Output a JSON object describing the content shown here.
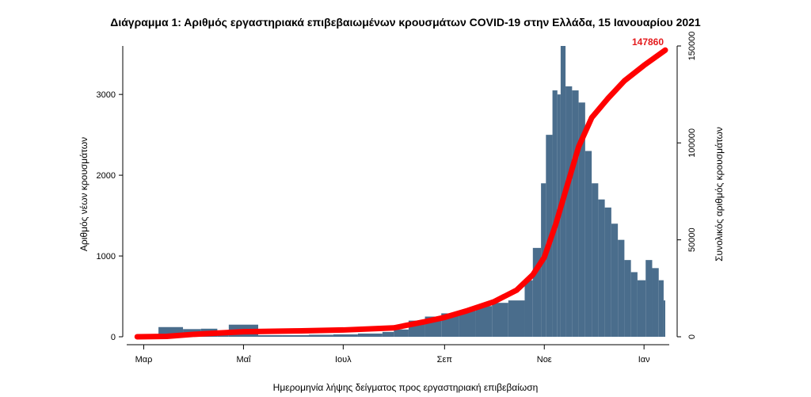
{
  "chart_data": {
    "type": "bar",
    "title": "Διάγραμμα 1: Αριθμός εργαστηριακά επιβεβαιωμένων κρουσμάτων COVID-19 στην Ελλάδα, 15 Ιανουαρίου 2021",
    "xlabel": "Ημερομηνία λήψης δείγματος προς εργαστηριακή επιβεβαίωση",
    "ylabel": "Αριθμός νέων κρουσμάτων",
    "y2label": "Συνολικός αριθμός κρουσμάτων",
    "xlim": [
      "2020-02-22",
      "2021-01-14"
    ],
    "ylim": [
      0,
      3600
    ],
    "y2lim": [
      0,
      150000
    ],
    "x_ticks": [
      {
        "date": "2020-03-01",
        "label": "Μαρ"
      },
      {
        "date": "2020-05-01",
        "label": "Μαΐ"
      },
      {
        "date": "2020-07-01",
        "label": "Ιουλ"
      },
      {
        "date": "2020-09-01",
        "label": "Σεπ"
      },
      {
        "date": "2020-11-01",
        "label": "Νοε"
      },
      {
        "date": "2021-01-01",
        "label": "Ιαν"
      }
    ],
    "y_ticks": [
      "0",
      "1000",
      "2000",
      "3000"
    ],
    "y2_ticks": [
      "0",
      "50000",
      "100000",
      "150000"
    ],
    "bar_color": "#4a6d8c",
    "line_color": "#ff0000",
    "series": [
      {
        "name": "new",
        "type": "bar",
        "points": [
          [
            "2020-02-26",
            10
          ],
          [
            "2020-03-10",
            120
          ],
          [
            "2020-03-25",
            95
          ],
          [
            "2020-04-05",
            100
          ],
          [
            "2020-04-15",
            60
          ],
          [
            "2020-04-22",
            150
          ],
          [
            "2020-05-10",
            20
          ],
          [
            "2020-05-25",
            20
          ],
          [
            "2020-06-10",
            25
          ],
          [
            "2020-06-25",
            30
          ],
          [
            "2020-07-10",
            40
          ],
          [
            "2020-07-25",
            60
          ],
          [
            "2020-08-01",
            90
          ],
          [
            "2020-08-10",
            200
          ],
          [
            "2020-08-20",
            250
          ],
          [
            "2020-08-30",
            290
          ],
          [
            "2020-09-10",
            320
          ],
          [
            "2020-09-20",
            380
          ],
          [
            "2020-09-30",
            420
          ],
          [
            "2020-10-10",
            450
          ],
          [
            "2020-10-20",
            700
          ],
          [
            "2020-10-25",
            1100
          ],
          [
            "2020-10-30",
            1900
          ],
          [
            "2020-11-02",
            2500
          ],
          [
            "2020-11-06",
            3050
          ],
          [
            "2020-11-09",
            3000
          ],
          [
            "2020-11-11",
            3600
          ],
          [
            "2020-11-14",
            3100
          ],
          [
            "2020-11-18",
            3050
          ],
          [
            "2020-11-22",
            2900
          ],
          [
            "2020-11-26",
            2300
          ],
          [
            "2020-11-30",
            1900
          ],
          [
            "2020-12-04",
            1700
          ],
          [
            "2020-12-08",
            1600
          ],
          [
            "2020-12-12",
            1400
          ],
          [
            "2020-12-16",
            1200
          ],
          [
            "2020-12-20",
            950
          ],
          [
            "2020-12-24",
            800
          ],
          [
            "2020-12-28",
            700
          ],
          [
            "2021-01-02",
            950
          ],
          [
            "2021-01-06",
            850
          ],
          [
            "2021-01-10",
            700
          ],
          [
            "2021-01-13",
            450
          ]
        ]
      },
      {
        "name": "cumulative",
        "type": "line",
        "axis": "right",
        "points": [
          [
            "2020-02-26",
            0
          ],
          [
            "2020-03-15",
            200
          ],
          [
            "2020-04-01",
            1300
          ],
          [
            "2020-05-01",
            2600
          ],
          [
            "2020-06-01",
            3000
          ],
          [
            "2020-07-01",
            3500
          ],
          [
            "2020-08-01",
            4600
          ],
          [
            "2020-08-20",
            7800
          ],
          [
            "2020-09-01",
            10000
          ],
          [
            "2020-09-15",
            13500
          ],
          [
            "2020-10-01",
            18000
          ],
          [
            "2020-10-15",
            24000
          ],
          [
            "2020-10-25",
            32000
          ],
          [
            "2020-11-01",
            41000
          ],
          [
            "2020-11-08",
            58000
          ],
          [
            "2020-11-15",
            78000
          ],
          [
            "2020-11-22",
            98000
          ],
          [
            "2020-11-30",
            113000
          ],
          [
            "2020-12-10",
            123000
          ],
          [
            "2020-12-20",
            132000
          ],
          [
            "2021-01-01",
            140000
          ],
          [
            "2021-01-14",
            147860
          ]
        ]
      }
    ],
    "annotations": [
      {
        "text": "147860",
        "date": "2021-01-14",
        "value": 147860
      }
    ]
  }
}
